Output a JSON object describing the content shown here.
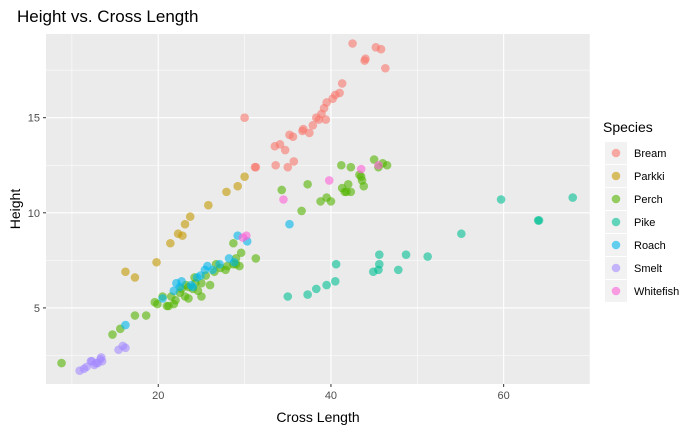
{
  "chart_data": {
    "type": "scatter",
    "title": "Height vs. Cross Length",
    "xlabel": "Cross Length",
    "ylabel": "Height",
    "xlim": [
      7.0,
      70.0
    ],
    "ylim": [
      1.0,
      19.4
    ],
    "x_ticks": [
      20,
      40,
      60
    ],
    "y_ticks": [
      5,
      10,
      15
    ],
    "x_tick_labels": [
      "20",
      "40",
      "60"
    ],
    "y_tick_labels": [
      "5",
      "10",
      "15"
    ],
    "grid": true,
    "legend": {
      "title": "Species",
      "position": "right"
    },
    "series": [
      {
        "name": "Bream",
        "color": "#F8766D",
        "points": [
          [
            42.5,
            18.9
          ],
          [
            45.2,
            18.7
          ],
          [
            45.8,
            18.6
          ],
          [
            43.9,
            18.0
          ],
          [
            44.0,
            18.1
          ],
          [
            46.3,
            17.6
          ],
          [
            41.3,
            16.8
          ],
          [
            40.5,
            16.2
          ],
          [
            40.2,
            16.0
          ],
          [
            41.0,
            16.3
          ],
          [
            39.2,
            15.5
          ],
          [
            39.5,
            15.8
          ],
          [
            38.3,
            15.0
          ],
          [
            36.8,
            14.4
          ],
          [
            38.6,
            14.9
          ],
          [
            37.9,
            14.6
          ],
          [
            39.4,
            14.9
          ],
          [
            35.2,
            14.1
          ],
          [
            37.5,
            14.2
          ],
          [
            35.6,
            14.0
          ],
          [
            36.7,
            14.3
          ],
          [
            38.9,
            15.2
          ],
          [
            34.1,
            13.6
          ],
          [
            33.5,
            13.5
          ],
          [
            34.7,
            13.3
          ],
          [
            33.6,
            12.5
          ],
          [
            35.7,
            12.7
          ],
          [
            35.0,
            12.4
          ],
          [
            31.2,
            12.4
          ],
          [
            30.0,
            15.0
          ],
          [
            31.3,
            12.4
          ]
        ]
      },
      {
        "name": "Parkki",
        "color": "#C49A00",
        "points": [
          [
            16.2,
            6.9
          ],
          [
            17.3,
            6.6
          ],
          [
            19.8,
            7.4
          ],
          [
            21.4,
            8.4
          ],
          [
            22.3,
            8.9
          ],
          [
            22.8,
            8.8
          ],
          [
            23.1,
            9.4
          ],
          [
            23.7,
            9.8
          ],
          [
            25.8,
            10.4
          ],
          [
            27.9,
            11.1
          ],
          [
            29.2,
            11.4
          ],
          [
            30.0,
            11.9
          ]
        ]
      },
      {
        "name": "Perch",
        "color": "#53B400",
        "points": [
          [
            8.8,
            2.1
          ],
          [
            14.7,
            3.6
          ],
          [
            15.6,
            3.9
          ],
          [
            17.3,
            4.6
          ],
          [
            18.6,
            4.6
          ],
          [
            19.6,
            5.3
          ],
          [
            19.9,
            5.2
          ],
          [
            21.0,
            5.1
          ],
          [
            20.5,
            5.6
          ],
          [
            21.5,
            5.6
          ],
          [
            22.0,
            5.4
          ],
          [
            22.5,
            5.8
          ],
          [
            22.7,
            6.0
          ],
          [
            23.1,
            5.6
          ],
          [
            23.5,
            6.1
          ],
          [
            23.5,
            5.5
          ],
          [
            24.0,
            6.0
          ],
          [
            24.3,
            6.3
          ],
          [
            24.6,
            5.9
          ],
          [
            25.0,
            6.3
          ],
          [
            25.0,
            5.6
          ],
          [
            25.5,
            6.7
          ],
          [
            26.0,
            6.2
          ],
          [
            26.5,
            6.9
          ],
          [
            27.2,
            7.1
          ],
          [
            27.8,
            7.0
          ],
          [
            28.7,
            7.3
          ],
          [
            29.0,
            7.6
          ],
          [
            29.0,
            7.3
          ],
          [
            29.4,
            7.2
          ],
          [
            31.3,
            7.6
          ],
          [
            28.7,
            8.4
          ],
          [
            21.2,
            5.1
          ],
          [
            21.8,
            5.2
          ],
          [
            23.2,
            6.2
          ],
          [
            24.2,
            6.6
          ],
          [
            26.7,
            7.3
          ],
          [
            28.0,
            7.2
          ],
          [
            29.6,
            7.9
          ],
          [
            37.3,
            11.5
          ],
          [
            38.8,
            10.6
          ],
          [
            39.5,
            10.8
          ],
          [
            40.0,
            10.6
          ],
          [
            41.3,
            11.3
          ],
          [
            41.6,
            11.1
          ],
          [
            42.3,
            11.1
          ],
          [
            42.0,
            11.5
          ],
          [
            43.3,
            12.0
          ],
          [
            43.5,
            11.9
          ],
          [
            43.8,
            11.4
          ],
          [
            43.6,
            11.7
          ],
          [
            45.0,
            12.8
          ],
          [
            45.5,
            12.4
          ],
          [
            46.5,
            12.5
          ],
          [
            41.2,
            12.5
          ],
          [
            42.3,
            12.4
          ],
          [
            34.3,
            11.2
          ],
          [
            36.6,
            10.1
          ],
          [
            41.8,
            11.1
          ],
          [
            46.0,
            12.6
          ]
        ]
      },
      {
        "name": "Pike",
        "color": "#00C094",
        "points": [
          [
            35.0,
            5.6
          ],
          [
            37.3,
            5.7
          ],
          [
            38.3,
            6.0
          ],
          [
            39.5,
            6.2
          ],
          [
            40.5,
            6.4
          ],
          [
            40.6,
            7.3
          ],
          [
            44.9,
            6.9
          ],
          [
            45.5,
            7.0
          ],
          [
            45.6,
            7.3
          ],
          [
            45.6,
            7.8
          ],
          [
            47.8,
            7.0
          ],
          [
            48.7,
            7.8
          ],
          [
            51.2,
            7.7
          ],
          [
            55.1,
            8.9
          ],
          [
            59.7,
            10.7
          ],
          [
            64.0,
            9.6
          ],
          [
            64.1,
            9.6
          ],
          [
            68.0,
            10.8
          ]
        ]
      },
      {
        "name": "Roach",
        "color": "#00B6EB",
        "points": [
          [
            16.2,
            4.1
          ],
          [
            20.5,
            5.5
          ],
          [
            21.8,
            5.9
          ],
          [
            22.1,
            6.3
          ],
          [
            22.5,
            6.1
          ],
          [
            22.7,
            6.4
          ],
          [
            23.8,
            6.2
          ],
          [
            24.0,
            6.1
          ],
          [
            24.5,
            6.6
          ],
          [
            24.9,
            6.7
          ],
          [
            25.4,
            7.0
          ],
          [
            25.7,
            7.2
          ],
          [
            26.3,
            7.0
          ],
          [
            27.1,
            7.3
          ],
          [
            28.2,
            7.6
          ],
          [
            29.2,
            8.8
          ],
          [
            30.3,
            8.5
          ],
          [
            35.2,
            9.4
          ],
          [
            28.8,
            7.4
          ]
        ]
      },
      {
        "name": "Smelt",
        "color": "#A58AFF",
        "points": [
          [
            10.9,
            1.7
          ],
          [
            11.4,
            1.8
          ],
          [
            11.7,
            1.9
          ],
          [
            12.2,
            2.2
          ],
          [
            12.6,
            2.0
          ],
          [
            13.0,
            2.1
          ],
          [
            12.3,
            2.2
          ],
          [
            13.3,
            2.3
          ],
          [
            13.4,
            2.4
          ],
          [
            13.5,
            2.2
          ],
          [
            12.8,
            2.1
          ],
          [
            15.4,
            2.8
          ],
          [
            16.2,
            2.9
          ],
          [
            15.9,
            3.0
          ]
        ]
      },
      {
        "name": "Whitefish",
        "color": "#FB61D7",
        "points": [
          [
            29.8,
            8.7
          ],
          [
            34.5,
            10.7
          ],
          [
            39.8,
            11.7
          ],
          [
            43.5,
            12.3
          ],
          [
            30.2,
            8.8
          ],
          [
            45.5,
            12.5
          ]
        ]
      }
    ]
  }
}
